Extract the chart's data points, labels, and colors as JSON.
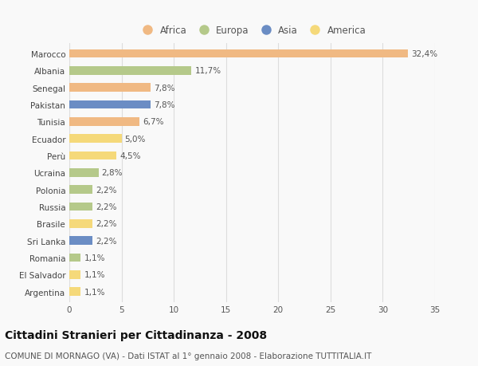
{
  "countries": [
    "Marocco",
    "Albania",
    "Senegal",
    "Pakistan",
    "Tunisia",
    "Ecuador",
    "Perù",
    "Ucraina",
    "Polonia",
    "Russia",
    "Brasile",
    "Sri Lanka",
    "Romania",
    "El Salvador",
    "Argentina"
  ],
  "values": [
    32.4,
    11.7,
    7.8,
    7.8,
    6.7,
    5.0,
    4.5,
    2.8,
    2.2,
    2.2,
    2.2,
    2.2,
    1.1,
    1.1,
    1.1
  ],
  "labels": [
    "32,4%",
    "11,7%",
    "7,8%",
    "7,8%",
    "6,7%",
    "5,0%",
    "4,5%",
    "2,8%",
    "2,2%",
    "2,2%",
    "2,2%",
    "2,2%",
    "1,1%",
    "1,1%",
    "1,1%"
  ],
  "continents": [
    "Africa",
    "Europa",
    "Africa",
    "Asia",
    "Africa",
    "America",
    "America",
    "Europa",
    "Europa",
    "Europa",
    "America",
    "Asia",
    "Europa",
    "America",
    "America"
  ],
  "continent_colors": {
    "Africa": "#F0B983",
    "Europa": "#B5C98A",
    "Asia": "#6B8DC4",
    "America": "#F5D97A"
  },
  "legend_order": [
    "Africa",
    "Europa",
    "Asia",
    "America"
  ],
  "title": "Cittadini Stranieri per Cittadinanza - 2008",
  "subtitle": "COMUNE DI MORNAGO (VA) - Dati ISTAT al 1° gennaio 2008 - Elaborazione TUTTITALIA.IT",
  "xlim": [
    0,
    35
  ],
  "xticks": [
    0,
    5,
    10,
    15,
    20,
    25,
    30,
    35
  ],
  "background_color": "#f9f9f9",
  "grid_color": "#dddddd",
  "bar_height": 0.5,
  "label_fontsize": 7.5,
  "tick_fontsize": 7.5,
  "title_fontsize": 10.0,
  "subtitle_fontsize": 7.5
}
